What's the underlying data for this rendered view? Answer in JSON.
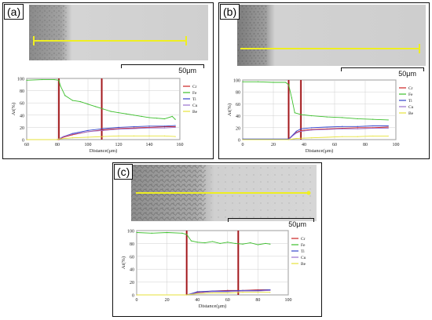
{
  "figure": {
    "panels": [
      {
        "label": "(a)",
        "scalebar_label": "50μm",
        "chart_data": {
          "type": "line",
          "xlabel": "Distance(μm)",
          "ylabel": "At(%)",
          "xlim": [
            60,
            160
          ],
          "ylim": [
            0,
            100
          ],
          "xticks": [
            60,
            80,
            100,
            120,
            140,
            160
          ],
          "yticks": [
            0,
            20,
            40,
            60,
            80,
            100
          ],
          "legend_position": "right",
          "interface_lines": [
            81,
            109
          ],
          "series": [
            {
              "name": "Cr",
              "color": "#cc2020",
              "x": [
                60,
                80,
                81,
                84,
                90,
                100,
                110,
                120,
                130,
                140,
                150,
                157
              ],
              "y": [
                0,
                0,
                0,
                4,
                8,
                13,
                16,
                18,
                19,
                20,
                21,
                21
              ]
            },
            {
              "name": "Fe",
              "color": "#3cbf2c",
              "x": [
                60,
                70,
                78,
                81,
                82,
                85,
                90,
                95,
                100,
                105,
                110,
                115,
                120,
                125,
                130,
                135,
                140,
                145,
                150,
                155,
                157
              ],
              "y": [
                97,
                98,
                98,
                97,
                88,
                72,
                64,
                62,
                58,
                54,
                50,
                46,
                44,
                42,
                40,
                38,
                36,
                35,
                34,
                38,
                33
              ]
            },
            {
              "name": "Ti",
              "color": "#3344cc",
              "x": [
                60,
                80,
                81,
                84,
                90,
                100,
                110,
                120,
                130,
                140,
                150,
                157
              ],
              "y": [
                0,
                0,
                1,
                5,
                10,
                15,
                18,
                20,
                21,
                22,
                22,
                23
              ]
            },
            {
              "name": "Cu",
              "color": "#9a6fcf",
              "x": [
                60,
                80,
                81,
                84,
                90,
                100,
                110,
                120,
                130,
                140,
                150,
                157
              ],
              "y": [
                0,
                0,
                1,
                5,
                9,
                13,
                15,
                17,
                18,
                19,
                19,
                20
              ]
            },
            {
              "name": "Be",
              "color": "#e6e23a",
              "x": [
                60,
                80,
                81,
                90,
                100,
                110,
                120,
                130,
                140,
                150,
                157
              ],
              "y": [
                0,
                0,
                1,
                3,
                4,
                5,
                6,
                6,
                6,
                6,
                5
              ]
            }
          ]
        }
      },
      {
        "label": "(b)",
        "scalebar_label": "50μm",
        "chart_data": {
          "type": "line",
          "xlabel": "Distance(μm)",
          "ylabel": "At(%)",
          "xlim": [
            0,
            100
          ],
          "ylim": [
            0,
            100
          ],
          "xticks": [
            0,
            20,
            40,
            60,
            80,
            100
          ],
          "yticks": [
            0,
            20,
            40,
            60,
            80,
            100
          ],
          "legend_position": "right",
          "interface_lines": [
            30,
            38
          ],
          "series": [
            {
              "name": "Cr",
              "color": "#cc2020",
              "x": [
                0,
                30,
                32,
                35,
                38,
                45,
                55,
                65,
                75,
                85,
                95
              ],
              "y": [
                0,
                0,
                5,
                12,
                15,
                17,
                18,
                19,
                20,
                20,
                21
              ]
            },
            {
              "name": "Fe",
              "color": "#3cbf2c",
              "x": [
                0,
                10,
                20,
                28,
                30,
                32,
                34,
                38,
                45,
                55,
                65,
                75,
                85,
                95
              ],
              "y": [
                97,
                97,
                96,
                96,
                92,
                70,
                45,
                42,
                40,
                38,
                37,
                35,
                34,
                33
              ]
            },
            {
              "name": "Ti",
              "color": "#3344cc",
              "x": [
                0,
                30,
                32,
                35,
                38,
                45,
                55,
                65,
                75,
                85,
                95
              ],
              "y": [
                1,
                1,
                6,
                14,
                18,
                20,
                21,
                22,
                22,
                23,
                23
              ]
            },
            {
              "name": "Cu",
              "color": "#9a6fcf",
              "x": [
                0,
                30,
                32,
                35,
                38,
                45,
                55,
                65,
                75,
                85,
                95
              ],
              "y": [
                0,
                0,
                5,
                11,
                14,
                16,
                17,
                18,
                18,
                19,
                19
              ]
            },
            {
              "name": "Be",
              "color": "#e6e23a",
              "x": [
                0,
                30,
                35,
                45,
                55,
                65,
                75,
                85,
                95
              ],
              "y": [
                0,
                0,
                2,
                3,
                4,
                5,
                5,
                6,
                6
              ]
            }
          ]
        }
      },
      {
        "label": "(c)",
        "scalebar_label": "50μm",
        "chart_data": {
          "type": "line",
          "xlabel": "Distance(μm)",
          "ylabel": "At(%)",
          "xlim": [
            0,
            100
          ],
          "ylim": [
            0,
            100
          ],
          "xticks": [
            0,
            20,
            40,
            60,
            80,
            100
          ],
          "yticks": [
            0,
            20,
            40,
            60,
            80,
            100
          ],
          "legend_position": "right",
          "interface_lines": [
            33,
            67
          ],
          "series": [
            {
              "name": "Cr",
              "color": "#cc2020",
              "x": [
                0,
                33,
                40,
                50,
                60,
                70,
                80,
                88
              ],
              "y": [
                0,
                0,
                4,
                6,
                7,
                7,
                8,
                8
              ]
            },
            {
              "name": "Fe",
              "color": "#3cbf2c",
              "x": [
                0,
                10,
                20,
                30,
                33,
                36,
                40,
                45,
                50,
                55,
                60,
                65,
                70,
                75,
                80,
                85,
                88
              ],
              "y": [
                97,
                96,
                97,
                96,
                94,
                84,
                82,
                81,
                83,
                80,
                82,
                80,
                79,
                81,
                78,
                80,
                79
              ]
            },
            {
              "name": "Ti",
              "color": "#3344cc",
              "x": [
                0,
                33,
                40,
                50,
                60,
                70,
                80,
                88
              ],
              "y": [
                0,
                0,
                5,
                6,
                6,
                7,
                7,
                8
              ]
            },
            {
              "name": "Cu",
              "color": "#9a6fcf",
              "x": [
                0,
                33,
                40,
                50,
                60,
                70,
                80,
                88
              ],
              "y": [
                0,
                0,
                3,
                5,
                5,
                6,
                6,
                7
              ]
            },
            {
              "name": "Be",
              "color": "#e6e23a",
              "x": [
                0,
                33,
                40,
                50,
                60,
                70,
                80,
                88
              ],
              "y": [
                0,
                0,
                2,
                3,
                3,
                4,
                4,
                4
              ]
            }
          ]
        }
      }
    ]
  }
}
